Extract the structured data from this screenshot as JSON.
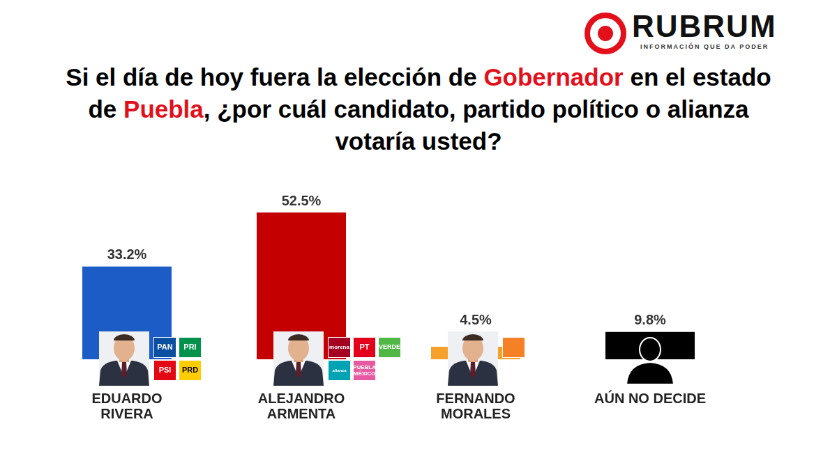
{
  "brand": "RUBRUM",
  "tagline": "INFORMACIÓN QUE DA PODER",
  "chart_data": {
    "type": "bar",
    "title": "Si el día de hoy fuera la elección de Gobernador en el estado de Puebla, ¿por cuál candidato, partido político o alianza votaría usted?",
    "title_highlight": [
      "Gobernador",
      "Puebla"
    ],
    "categories": [
      "EDUARDO RIVERA",
      "ALEJANDRO ARMENTA",
      "FERNANDO MORALES",
      "AÚN NO DECIDE"
    ],
    "values": [
      33.2,
      52.5,
      4.5,
      9.8
    ],
    "value_labels": [
      "33.2%",
      "52.5%",
      "4.5%",
      "9.8%"
    ],
    "colors": [
      "#1c5cc6",
      "#c50000",
      "#f6a12b",
      "#000000"
    ],
    "parties": [
      [
        {
          "name": "PAN",
          "color": "#0a4fa0"
        },
        {
          "name": "PRI",
          "color": "#00924a"
        },
        {
          "name": "PSI",
          "color": "#e30613"
        },
        {
          "name": "PRD",
          "color": "#ffcc00"
        }
      ],
      [
        {
          "name": "morena",
          "color": "#a50021"
        },
        {
          "name": "PT",
          "color": "#e2001a"
        },
        {
          "name": "VERDE",
          "color": "#50b747"
        },
        {
          "name": "alianza",
          "color": "#00a3b4"
        },
        {
          "name": "PUEBLA MÉXICO",
          "color": "#e75aa2"
        }
      ],
      [
        {
          "color": "#f58025"
        }
      ],
      []
    ],
    "ylim": [
      0,
      60
    ],
    "grid": false,
    "tick_labels": "x",
    "data_labels": true
  }
}
